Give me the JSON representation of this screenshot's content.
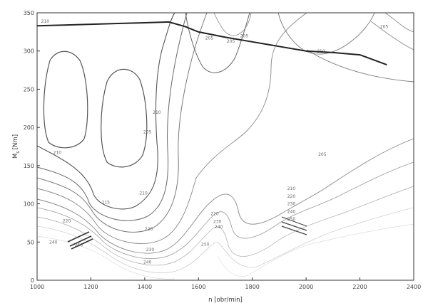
{
  "chart_data": {
    "type": "contour",
    "xlabel": "n [obr/min]",
    "ylabel": "M",
    "ylabel_sub": "s",
    "ylabel_unit": "[Nm]",
    "xlim": [
      1000,
      2400
    ],
    "ylim": [
      0,
      350
    ],
    "x_ticks": [
      1000,
      1200,
      1400,
      1600,
      1800,
      2000,
      2200,
      2400
    ],
    "y_ticks": [
      0,
      50,
      100,
      150,
      200,
      250,
      300,
      350
    ],
    "grid": false,
    "full_load_curve": {
      "x": [
        1000,
        1100,
        1200,
        1300,
        1400,
        1490,
        1550,
        1600,
        1700,
        1800,
        1900,
        2000,
        2100,
        2200,
        2300
      ],
      "y": [
        333,
        334,
        335,
        336,
        337,
        338,
        332,
        325,
        318,
        312,
        306,
        300,
        298,
        295,
        282
      ]
    },
    "contour_labels": [
      {
        "x": 1015,
        "y": 337,
        "text": "210"
      },
      {
        "x": 1060,
        "y": 165,
        "text": "210"
      },
      {
        "x": 1095,
        "y": 76,
        "text": "220"
      },
      {
        "x": 1045,
        "y": 48,
        "text": "240"
      },
      {
        "x": 1140,
        "y": 44,
        "text": "250"
      },
      {
        "x": 1240,
        "y": 100,
        "text": "215"
      },
      {
        "x": 1395,
        "y": 192,
        "text": "205"
      },
      {
        "x": 1380,
        "y": 112,
        "text": "210"
      },
      {
        "x": 1400,
        "y": 65,
        "text": "220"
      },
      {
        "x": 1405,
        "y": 38,
        "text": "230"
      },
      {
        "x": 1395,
        "y": 22,
        "text": "240"
      },
      {
        "x": 1430,
        "y": 218,
        "text": "210"
      },
      {
        "x": 1625,
        "y": 315,
        "text": "205"
      },
      {
        "x": 1705,
        "y": 311,
        "text": "205"
      },
      {
        "x": 1755,
        "y": 318,
        "text": "205"
      },
      {
        "x": 1645,
        "y": 85,
        "text": "220"
      },
      {
        "x": 1655,
        "y": 75,
        "text": "230"
      },
      {
        "x": 1660,
        "y": 68,
        "text": "240"
      },
      {
        "x": 1610,
        "y": 45,
        "text": "250"
      },
      {
        "x": 1930,
        "y": 118,
        "text": "210"
      },
      {
        "x": 1930,
        "y": 108,
        "text": "220"
      },
      {
        "x": 1930,
        "y": 98,
        "text": "230"
      },
      {
        "x": 1930,
        "y": 88,
        "text": "240"
      },
      {
        "x": 1930,
        "y": 78,
        "text": "250"
      },
      {
        "x": 2040,
        "y": 298,
        "text": "210"
      },
      {
        "x": 2045,
        "y": 163,
        "text": "205"
      },
      {
        "x": 2275,
        "y": 330,
        "text": "205"
      }
    ]
  }
}
